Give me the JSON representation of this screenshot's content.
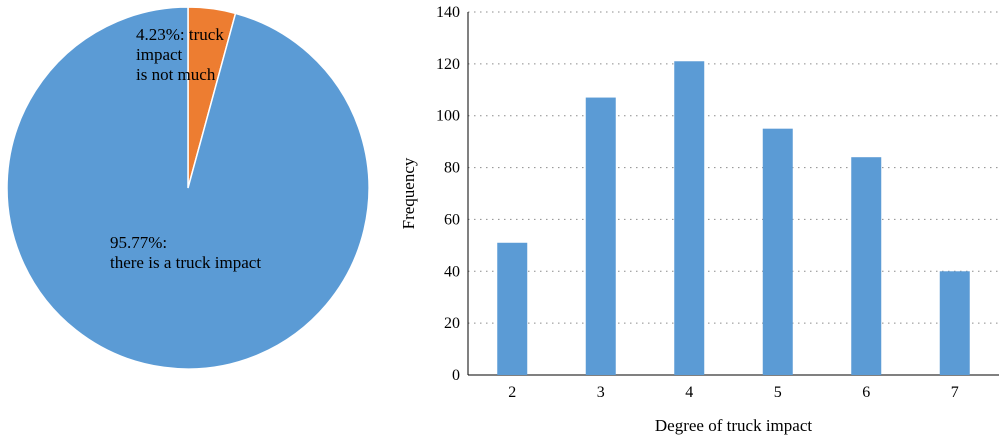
{
  "chart_data": [
    {
      "type": "pie",
      "slices": [
        {
          "name": "truck impact is not much",
          "value": 4.23,
          "color": "#ED7D31",
          "label_lines": [
            "4.23%: truck",
            "impact",
            "is not much"
          ]
        },
        {
          "name": "there is a truck impact",
          "value": 95.77,
          "color": "#5B9BD5",
          "label_lines": [
            "95.77%:",
            "there is a truck impact"
          ]
        }
      ],
      "start_angle": "12 o'clock",
      "direction": "clockwise"
    },
    {
      "type": "bar",
      "categories": [
        "2",
        "3",
        "4",
        "5",
        "6",
        "7"
      ],
      "values": [
        51,
        107,
        121,
        95,
        84,
        40
      ],
      "color": "#5B9BD5",
      "xlabel": "Degree of truck impact",
      "ylabel": "Frequency",
      "ylim": [
        0,
        140
      ],
      "yticks": [
        0,
        20,
        40,
        60,
        80,
        100,
        120,
        140
      ],
      "grid": "horizontal dotted"
    }
  ]
}
